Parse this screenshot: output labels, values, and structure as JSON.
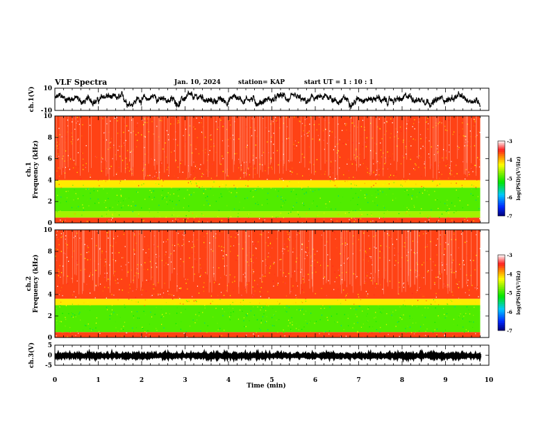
{
  "header": {
    "title": "VLF Spectra",
    "date": "Jan. 10, 2024",
    "station": "station= KAP",
    "start": "start  UT =   1 : 10 : 1"
  },
  "chart_data": [
    {
      "type": "line",
      "ylabel": "ch.1(V)",
      "xlim": [
        0,
        10
      ],
      "ylim": [
        -10,
        10
      ],
      "yticks": [
        "10",
        "-10"
      ],
      "series": [
        {
          "color": "#000000",
          "mean": 0,
          "amplitude_typical": 4.5,
          "x_end": 9.8
        }
      ]
    },
    {
      "type": "heatmap",
      "ylabel": "ch.1\nFrequency (kHz)",
      "xlim": [
        0,
        10
      ],
      "ylim": [
        0,
        10
      ],
      "yticks": [
        "0",
        "2",
        "4",
        "6",
        "8",
        "10"
      ],
      "x_end": 9.8,
      "colorbar": {
        "label": "log(PSD)(V²/Hz)",
        "range": [
          -7,
          -3
        ],
        "ticks": [
          "-3",
          "-4",
          "-5",
          "-6",
          "-7"
        ]
      },
      "bands_kHz": [
        {
          "from": 0.0,
          "to": 0.5,
          "level": -3.6
        },
        {
          "from": 0.5,
          "to": 1.1,
          "level": -4.6
        },
        {
          "from": 1.1,
          "to": 3.3,
          "level": -4.9
        },
        {
          "from": 3.3,
          "to": 4.0,
          "level": -4.2
        },
        {
          "from": 4.0,
          "to": 10.0,
          "level": -3.6
        }
      ]
    },
    {
      "type": "heatmap",
      "ylabel": "ch.2\nFrequency (kHz)",
      "xlim": [
        0,
        10
      ],
      "ylim": [
        0,
        10
      ],
      "yticks": [
        "0",
        "2",
        "4",
        "6",
        "8",
        "10"
      ],
      "x_end": 9.8,
      "colorbar": {
        "label": "log(PSD)(V²/Hz)",
        "range": [
          -7,
          -3
        ],
        "ticks": [
          "-3",
          "-4",
          "-5",
          "-6",
          "-7"
        ]
      },
      "bands_kHz": [
        {
          "from": 0.0,
          "to": 0.5,
          "level": -3.6
        },
        {
          "from": 0.5,
          "to": 3.0,
          "level": -4.9
        },
        {
          "from": 3.0,
          "to": 3.6,
          "level": -4.2
        },
        {
          "from": 3.6,
          "to": 10.0,
          "level": -3.6
        }
      ]
    },
    {
      "type": "line",
      "ylabel": "ch.3(V)",
      "xlabel": "Time (min)",
      "xlim": [
        0,
        10
      ],
      "ylim": [
        -5,
        5
      ],
      "xticks": [
        "0",
        "1",
        "2",
        "3",
        "4",
        "5",
        "6",
        "7",
        "8",
        "9",
        "10"
      ],
      "yticks": [
        "5",
        "0",
        "-5"
      ],
      "series": [
        {
          "color": "#000000",
          "mean": -0.3,
          "amplitude_typical": 0.4,
          "x_end": 9.8
        }
      ]
    }
  ]
}
